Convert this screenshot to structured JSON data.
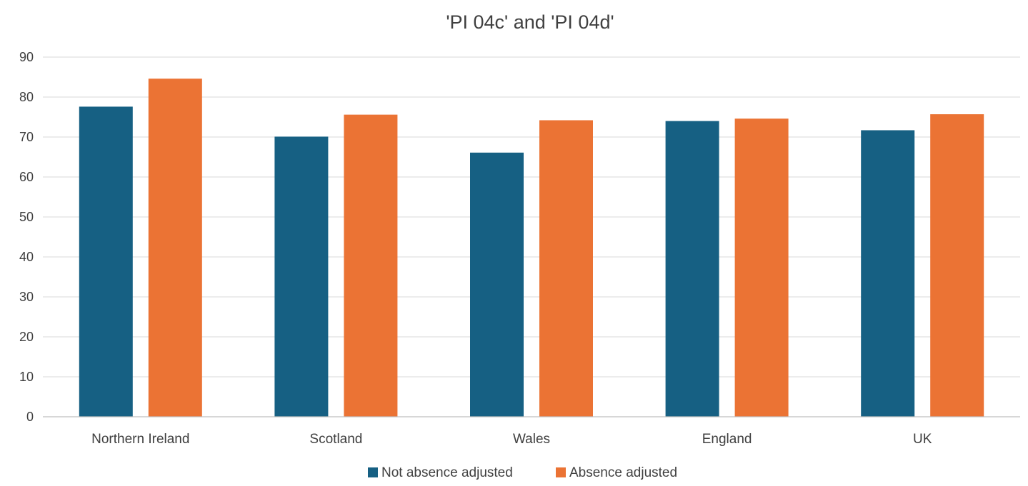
{
  "chart_data": {
    "type": "bar",
    "title": "'PI 04c' and 'PI 04d'",
    "xlabel": "",
    "ylabel": "",
    "categories": [
      "Northern Ireland",
      "Scotland",
      "Wales",
      "England",
      "UK"
    ],
    "series": [
      {
        "name": "Not absence adjusted",
        "color": "#166083",
        "values": [
          77.6,
          70.1,
          66.1,
          74.0,
          71.7
        ]
      },
      {
        "name": "Absence adjusted",
        "color": "#EB7334",
        "values": [
          84.6,
          75.6,
          74.2,
          74.6,
          75.7
        ]
      }
    ],
    "ylim": [
      0,
      90
    ],
    "yticks": [
      0,
      10,
      20,
      30,
      40,
      50,
      60,
      70,
      80,
      90
    ],
    "grid": true,
    "legend": "bottom"
  }
}
